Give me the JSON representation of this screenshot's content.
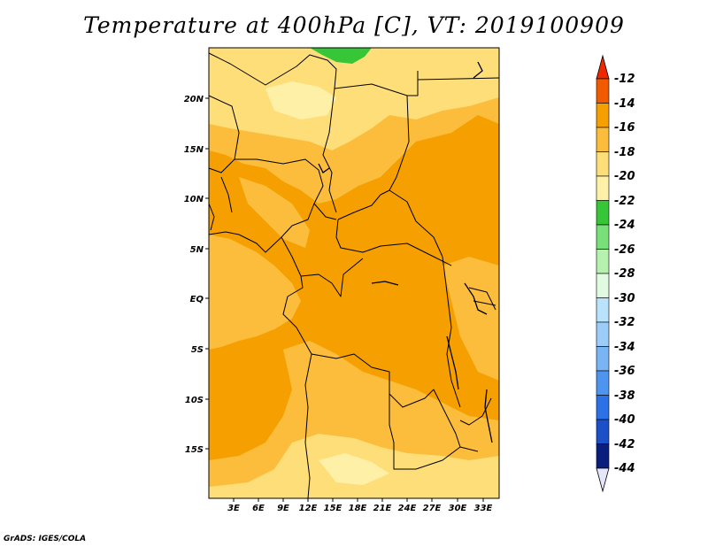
{
  "title": "Temperature at 400hPa [C], VT: 2019100909",
  "credit": "GrADS: IGES/COLA",
  "map": {
    "lon_labels": [
      "3E",
      "6E",
      "9E",
      "12E",
      "15E",
      "18E",
      "21E",
      "24E",
      "27E",
      "30E",
      "33E"
    ],
    "lat_labels": [
      "20N",
      "15N",
      "10N",
      "5N",
      "EQ",
      "5S",
      "10S",
      "15S"
    ],
    "fill_colors": {
      "minus16_to_minus14": "#f5a000",
      "minus18_to_minus16": "#fbbd3b",
      "minus20_to_minus18": "#fede78",
      "minus22_to_minus20": "#fef0a6",
      "minus24_to_minus22": "#37c638"
    }
  },
  "colorbar": {
    "labels": [
      "-12",
      "-14",
      "-16",
      "-18",
      "-20",
      "-22",
      "-24",
      "-26",
      "-28",
      "-30",
      "-32",
      "-34",
      "-36",
      "-38",
      "-40",
      "-42",
      "-44"
    ],
    "colors": [
      "#f05a00",
      "#f5a000",
      "#fbbd3b",
      "#fede78",
      "#fef0a6",
      "#37c638",
      "#79df79",
      "#b6f1b0",
      "#e0fbe2",
      "#b8e3fb",
      "#9bcdf8",
      "#79b4f5",
      "#4e95f0",
      "#2c72e6",
      "#1b50c8",
      "#0a1e7e"
    ],
    "top_color": "#f02800",
    "bottom_color": "#e6e6fa"
  }
}
